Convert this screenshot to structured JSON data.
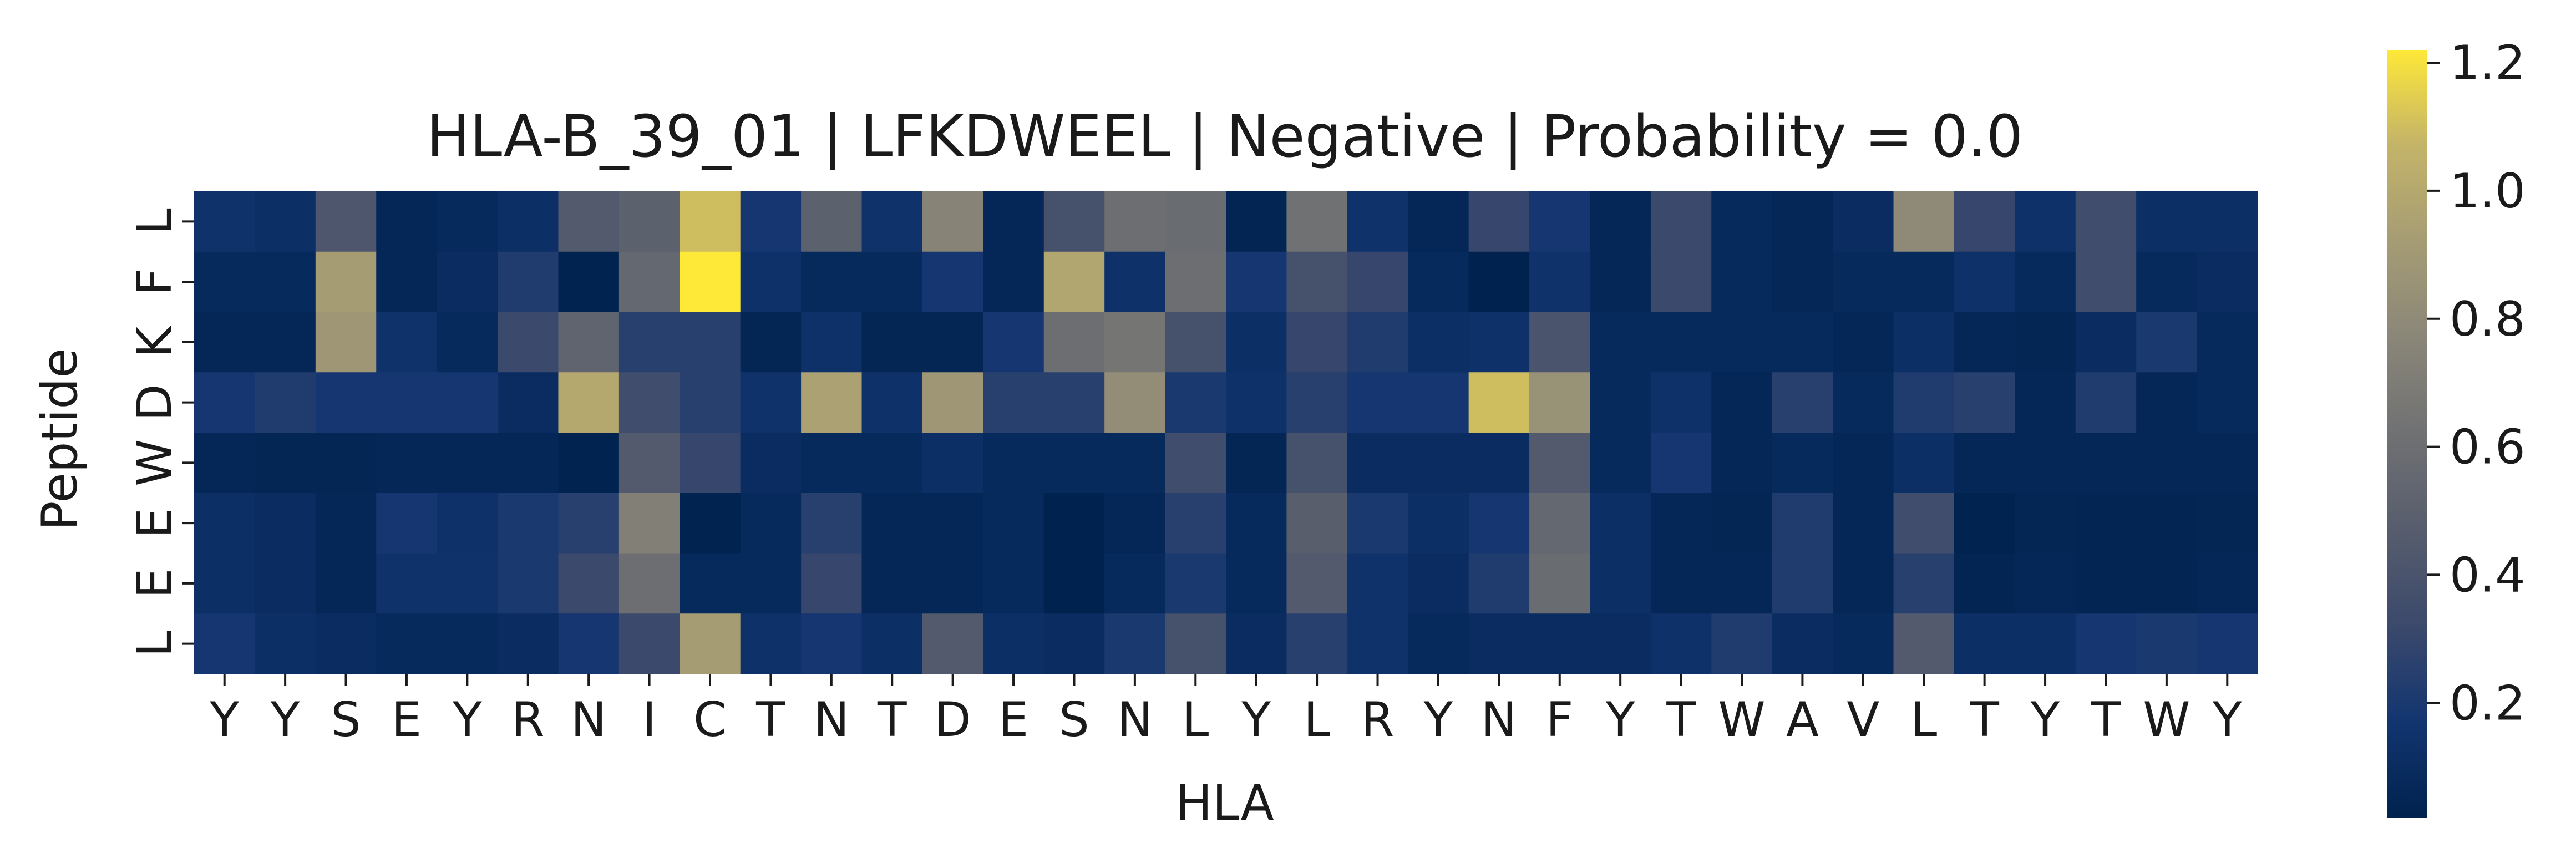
{
  "chart_data": {
    "type": "heatmap",
    "title": "HLA-B_39_01 | LFKDWEEL | Negative | Probability = 0.0",
    "xlabel": "HLA",
    "ylabel": "Peptide",
    "x_categories": [
      "Y",
      "Y",
      "S",
      "E",
      "Y",
      "R",
      "N",
      "I",
      "C",
      "T",
      "N",
      "T",
      "D",
      "E",
      "S",
      "N",
      "L",
      "Y",
      "L",
      "R",
      "Y",
      "N",
      "F",
      "Y",
      "T",
      "W",
      "A",
      "V",
      "L",
      "T",
      "Y",
      "T",
      "W",
      "Y"
    ],
    "y_categories": [
      "L",
      "F",
      "K",
      "D",
      "W",
      "E",
      "E",
      "L"
    ],
    "values": [
      [
        0.15,
        0.12,
        0.42,
        0.06,
        0.08,
        0.12,
        0.45,
        0.5,
        1.1,
        0.18,
        0.5,
        0.15,
        0.75,
        0.06,
        0.38,
        0.6,
        0.58,
        0.04,
        0.62,
        0.15,
        0.06,
        0.3,
        0.18,
        0.06,
        0.32,
        0.08,
        0.06,
        0.1,
        0.8,
        0.3,
        0.14,
        0.35,
        0.12,
        0.12
      ],
      [
        0.08,
        0.08,
        0.92,
        0.06,
        0.1,
        0.22,
        0.03,
        0.55,
        1.22,
        0.14,
        0.08,
        0.08,
        0.18,
        0.06,
        0.98,
        0.14,
        0.6,
        0.18,
        0.38,
        0.3,
        0.08,
        0.02,
        0.15,
        0.06,
        0.32,
        0.08,
        0.06,
        0.08,
        0.08,
        0.14,
        0.08,
        0.35,
        0.08,
        0.1
      ],
      [
        0.06,
        0.06,
        0.88,
        0.15,
        0.08,
        0.32,
        0.52,
        0.25,
        0.25,
        0.05,
        0.14,
        0.05,
        0.05,
        0.18,
        0.6,
        0.65,
        0.38,
        0.12,
        0.3,
        0.22,
        0.12,
        0.14,
        0.4,
        0.08,
        0.08,
        0.08,
        0.08,
        0.06,
        0.12,
        0.06,
        0.05,
        0.1,
        0.2,
        0.08
      ],
      [
        0.18,
        0.22,
        0.18,
        0.18,
        0.18,
        0.1,
        1.0,
        0.35,
        0.25,
        0.15,
        0.95,
        0.14,
        0.88,
        0.25,
        0.25,
        0.82,
        0.2,
        0.14,
        0.25,
        0.18,
        0.18,
        1.1,
        0.85,
        0.08,
        0.14,
        0.06,
        0.25,
        0.08,
        0.22,
        0.25,
        0.06,
        0.22,
        0.06,
        0.08
      ],
      [
        0.06,
        0.05,
        0.05,
        0.06,
        0.06,
        0.06,
        0.03,
        0.45,
        0.3,
        0.1,
        0.08,
        0.08,
        0.12,
        0.08,
        0.08,
        0.08,
        0.35,
        0.05,
        0.38,
        0.1,
        0.1,
        0.1,
        0.45,
        0.08,
        0.18,
        0.06,
        0.08,
        0.06,
        0.12,
        0.06,
        0.06,
        0.06,
        0.06,
        0.06
      ],
      [
        0.12,
        0.1,
        0.06,
        0.18,
        0.14,
        0.2,
        0.25,
        0.72,
        0.03,
        0.08,
        0.25,
        0.06,
        0.06,
        0.08,
        0.02,
        0.06,
        0.25,
        0.08,
        0.48,
        0.2,
        0.12,
        0.18,
        0.55,
        0.12,
        0.06,
        0.05,
        0.22,
        0.06,
        0.35,
        0.03,
        0.05,
        0.04,
        0.04,
        0.05
      ],
      [
        0.12,
        0.1,
        0.06,
        0.15,
        0.15,
        0.2,
        0.32,
        0.6,
        0.08,
        0.08,
        0.3,
        0.06,
        0.06,
        0.08,
        0.02,
        0.08,
        0.2,
        0.08,
        0.45,
        0.15,
        0.1,
        0.22,
        0.58,
        0.12,
        0.06,
        0.06,
        0.22,
        0.06,
        0.25,
        0.04,
        0.06,
        0.04,
        0.04,
        0.06
      ],
      [
        0.18,
        0.12,
        0.1,
        0.08,
        0.08,
        0.1,
        0.18,
        0.32,
        0.92,
        0.14,
        0.18,
        0.12,
        0.45,
        0.12,
        0.1,
        0.2,
        0.38,
        0.1,
        0.25,
        0.15,
        0.08,
        0.1,
        0.1,
        0.1,
        0.14,
        0.22,
        0.1,
        0.08,
        0.45,
        0.12,
        0.12,
        0.18,
        0.2,
        0.18
      ]
    ],
    "vmin": 0.02,
    "vmax": 1.22,
    "colormap": "cividis",
    "colorbar_ticks": [
      "0.2",
      "0.4",
      "0.6",
      "0.8",
      "1.0",
      "1.2"
    ],
    "colorbar_tick_values": [
      0.2,
      0.4,
      0.6,
      0.8,
      1.0,
      1.2
    ]
  }
}
